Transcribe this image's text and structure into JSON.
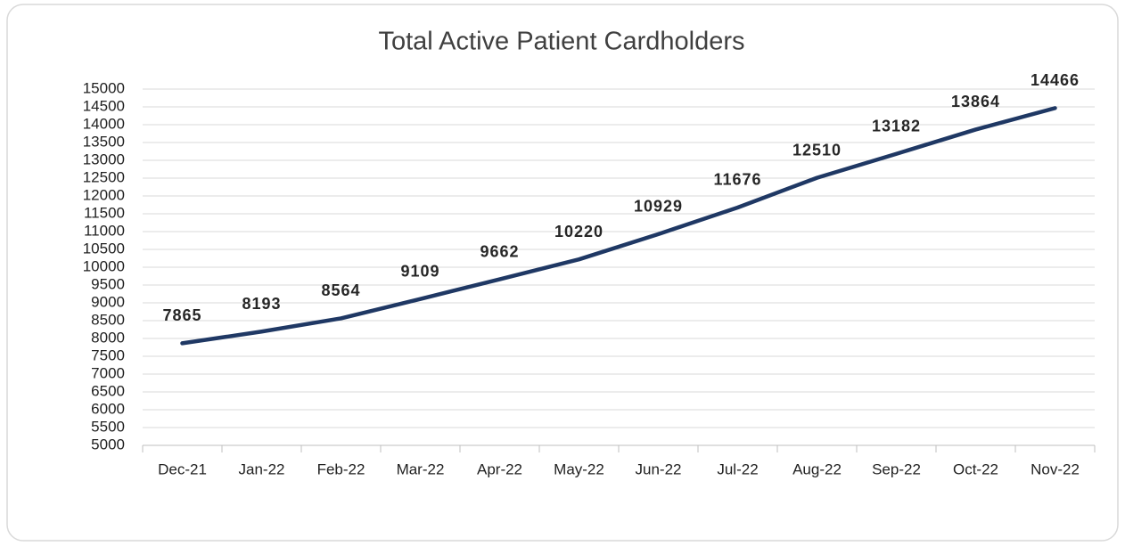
{
  "chart_data": {
    "type": "line",
    "title": "Total Active Patient Cardholders",
    "categories": [
      "Dec-21",
      "Jan-22",
      "Feb-22",
      "Mar-22",
      "Apr-22",
      "May-22",
      "Jun-22",
      "Jul-22",
      "Aug-22",
      "Sep-22",
      "Oct-22",
      "Nov-22"
    ],
    "values": [
      7865,
      8193,
      8564,
      9109,
      9662,
      10220,
      10929,
      11676,
      12510,
      13182,
      13864,
      14466
    ],
    "color": "#1f3864",
    "ylim": [
      5000,
      15000
    ],
    "yticks": [
      5000,
      5500,
      6000,
      6500,
      7000,
      7500,
      8000,
      8500,
      9000,
      9500,
      10000,
      10500,
      11000,
      11500,
      12000,
      12500,
      13000,
      13500,
      14000,
      14500,
      15000
    ],
    "grid": true
  }
}
